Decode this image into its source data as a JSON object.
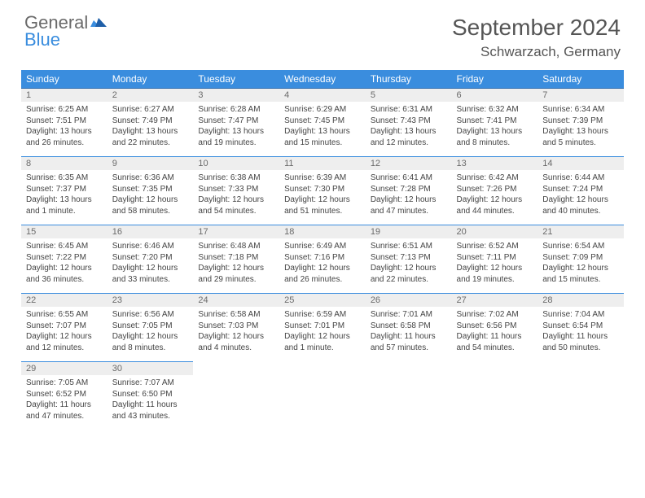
{
  "brand": {
    "part1": "General",
    "part2": "Blue"
  },
  "title": "September 2024",
  "location": "Schwarzach, Germany",
  "colors": {
    "header_bg": "#3a8dde",
    "header_text": "#ffffff",
    "daynum_bg": "#eeeeee",
    "daynum_text": "#6a6a6a",
    "body_text": "#444444",
    "page_bg": "#ffffff",
    "rule": "#3a8dde"
  },
  "dow": [
    "Sunday",
    "Monday",
    "Tuesday",
    "Wednesday",
    "Thursday",
    "Friday",
    "Saturday"
  ],
  "weeks": [
    [
      {
        "n": "1",
        "sr": "6:25 AM",
        "ss": "7:51 PM",
        "dl": "13 hours and 26 minutes."
      },
      {
        "n": "2",
        "sr": "6:27 AM",
        "ss": "7:49 PM",
        "dl": "13 hours and 22 minutes."
      },
      {
        "n": "3",
        "sr": "6:28 AM",
        "ss": "7:47 PM",
        "dl": "13 hours and 19 minutes."
      },
      {
        "n": "4",
        "sr": "6:29 AM",
        "ss": "7:45 PM",
        "dl": "13 hours and 15 minutes."
      },
      {
        "n": "5",
        "sr": "6:31 AM",
        "ss": "7:43 PM",
        "dl": "13 hours and 12 minutes."
      },
      {
        "n": "6",
        "sr": "6:32 AM",
        "ss": "7:41 PM",
        "dl": "13 hours and 8 minutes."
      },
      {
        "n": "7",
        "sr": "6:34 AM",
        "ss": "7:39 PM",
        "dl": "13 hours and 5 minutes."
      }
    ],
    [
      {
        "n": "8",
        "sr": "6:35 AM",
        "ss": "7:37 PM",
        "dl": "13 hours and 1 minute."
      },
      {
        "n": "9",
        "sr": "6:36 AM",
        "ss": "7:35 PM",
        "dl": "12 hours and 58 minutes."
      },
      {
        "n": "10",
        "sr": "6:38 AM",
        "ss": "7:33 PM",
        "dl": "12 hours and 54 minutes."
      },
      {
        "n": "11",
        "sr": "6:39 AM",
        "ss": "7:30 PM",
        "dl": "12 hours and 51 minutes."
      },
      {
        "n": "12",
        "sr": "6:41 AM",
        "ss": "7:28 PM",
        "dl": "12 hours and 47 minutes."
      },
      {
        "n": "13",
        "sr": "6:42 AM",
        "ss": "7:26 PM",
        "dl": "12 hours and 44 minutes."
      },
      {
        "n": "14",
        "sr": "6:44 AM",
        "ss": "7:24 PM",
        "dl": "12 hours and 40 minutes."
      }
    ],
    [
      {
        "n": "15",
        "sr": "6:45 AM",
        "ss": "7:22 PM",
        "dl": "12 hours and 36 minutes."
      },
      {
        "n": "16",
        "sr": "6:46 AM",
        "ss": "7:20 PM",
        "dl": "12 hours and 33 minutes."
      },
      {
        "n": "17",
        "sr": "6:48 AM",
        "ss": "7:18 PM",
        "dl": "12 hours and 29 minutes."
      },
      {
        "n": "18",
        "sr": "6:49 AM",
        "ss": "7:16 PM",
        "dl": "12 hours and 26 minutes."
      },
      {
        "n": "19",
        "sr": "6:51 AM",
        "ss": "7:13 PM",
        "dl": "12 hours and 22 minutes."
      },
      {
        "n": "20",
        "sr": "6:52 AM",
        "ss": "7:11 PM",
        "dl": "12 hours and 19 minutes."
      },
      {
        "n": "21",
        "sr": "6:54 AM",
        "ss": "7:09 PM",
        "dl": "12 hours and 15 minutes."
      }
    ],
    [
      {
        "n": "22",
        "sr": "6:55 AM",
        "ss": "7:07 PM",
        "dl": "12 hours and 12 minutes."
      },
      {
        "n": "23",
        "sr": "6:56 AM",
        "ss": "7:05 PM",
        "dl": "12 hours and 8 minutes."
      },
      {
        "n": "24",
        "sr": "6:58 AM",
        "ss": "7:03 PM",
        "dl": "12 hours and 4 minutes."
      },
      {
        "n": "25",
        "sr": "6:59 AM",
        "ss": "7:01 PM",
        "dl": "12 hours and 1 minute."
      },
      {
        "n": "26",
        "sr": "7:01 AM",
        "ss": "6:58 PM",
        "dl": "11 hours and 57 minutes."
      },
      {
        "n": "27",
        "sr": "7:02 AM",
        "ss": "6:56 PM",
        "dl": "11 hours and 54 minutes."
      },
      {
        "n": "28",
        "sr": "7:04 AM",
        "ss": "6:54 PM",
        "dl": "11 hours and 50 minutes."
      }
    ],
    [
      {
        "n": "29",
        "sr": "7:05 AM",
        "ss": "6:52 PM",
        "dl": "11 hours and 47 minutes."
      },
      {
        "n": "30",
        "sr": "7:07 AM",
        "ss": "6:50 PM",
        "dl": "11 hours and 43 minutes."
      },
      null,
      null,
      null,
      null,
      null
    ]
  ],
  "labels": {
    "sunrise": "Sunrise:",
    "sunset": "Sunset:",
    "daylight": "Daylight:"
  }
}
